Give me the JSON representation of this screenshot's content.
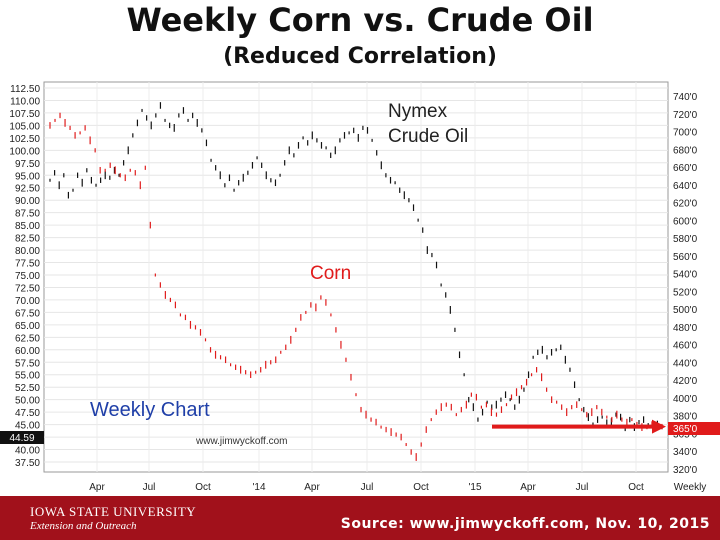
{
  "title": "Weekly Corn vs. Crude Oil",
  "subtitle": "(Reduced Correlation)",
  "footer": {
    "university_line1": "IOWA STATE UNIVERSITY",
    "university_line2": "Extension and Outreach",
    "source": "Source: www.jimwyckoff.com, Nov. 10, 2015"
  },
  "chart_data": {
    "type": "line",
    "x_ticks": [
      "Apr",
      "Jul",
      "Oct",
      "'14",
      "Apr",
      "Jul",
      "Oct",
      "'15",
      "Apr",
      "Jul",
      "Oct",
      "Weekly"
    ],
    "left_axis": {
      "ticks": [
        "112.50",
        "110.00",
        "107.50",
        "105.00",
        "102.50",
        "100.00",
        "97.50",
        "95.00",
        "92.50",
        "90.00",
        "87.50",
        "85.00",
        "82.50",
        "80.00",
        "77.50",
        "75.00",
        "72.50",
        "70.00",
        "67.50",
        "65.00",
        "62.50",
        "60.00",
        "57.50",
        "55.00",
        "52.50",
        "50.00",
        "47.50",
        "45.00",
        "42.50",
        "40.00",
        "37.50"
      ],
      "ylim": [
        37.5,
        112.5
      ],
      "current_label": "44.59"
    },
    "right_axis": {
      "ticks": [
        "740'0",
        "720'0",
        "700'0",
        "680'0",
        "660'0",
        "640'0",
        "620'0",
        "600'0",
        "580'0",
        "560'0",
        "540'0",
        "520'0",
        "500'0",
        "480'0",
        "460'0",
        "440'0",
        "420'0",
        "400'0",
        "380'0",
        "365'0",
        "340'0",
        "320'0"
      ],
      "current_label": "365'0"
    },
    "annotations": {
      "crude_label_line1": "Nymex",
      "crude_label_line2": "Crude Oil",
      "corn_label": "Corn",
      "chart_label": "Weekly Chart",
      "website": "www.jimwyckoff.com"
    },
    "series": [
      {
        "color": "#111111",
        "axis": "left",
        "values": [
          94,
          95.5,
          93,
          95,
          91,
          92,
          95,
          93.5,
          96,
          94,
          93,
          94,
          95,
          94.5,
          96,
          95,
          97.5,
          100,
          103,
          105.5,
          108,
          106.5,
          105,
          107,
          109,
          106,
          105,
          104.5,
          107,
          108,
          106,
          107,
          105.5,
          104,
          101.5,
          98,
          96.5,
          95,
          93,
          94.5,
          92,
          93.5,
          94.5,
          95.5,
          97,
          98.5,
          97,
          95,
          94,
          93.5,
          95,
          97.5,
          100,
          99,
          101,
          102.5,
          101.5,
          103,
          102,
          101,
          100.5,
          99,
          100,
          102,
          103,
          103.5,
          104,
          102.5,
          104.5,
          104,
          102,
          99.5,
          97,
          95,
          94,
          93.5,
          92,
          91,
          90,
          88.5,
          86,
          84,
          80,
          79,
          77,
          73,
          71,
          68,
          64,
          59,
          55,
          50,
          48.5,
          46,
          47.5,
          49.5,
          48.5,
          49,
          50,
          51,
          50,
          48.5,
          50,
          52,
          55,
          58.5,
          59.5,
          60,
          58.5,
          59.5,
          60,
          60.5,
          58,
          56,
          53,
          50,
          48,
          46.5,
          45,
          46,
          46.5,
          45.5,
          45.5,
          47,
          46.5,
          44,
          46,
          44.5,
          45.5,
          46,
          45,
          44,
          45,
          44.5
        ]
      },
      {
        "color": "#e01b1b",
        "axis": "left",
        "values": [
          105,
          106,
          107,
          105.5,
          104.5,
          103,
          103.5,
          104.5,
          102,
          100,
          96,
          96,
          97,
          96,
          95,
          94.5,
          96,
          95.5,
          93,
          96.5,
          85,
          75,
          73,
          71,
          70,
          69,
          67,
          66.5,
          65,
          64.5,
          63.5,
          62,
          60,
          59,
          58.5,
          58,
          57,
          56.5,
          56,
          55.5,
          55,
          55.5,
          56,
          57,
          57.5,
          58,
          59.5,
          60.5,
          62,
          64,
          66.5,
          67.5,
          69,
          68.5,
          70.5,
          69.5,
          67,
          64,
          61,
          58,
          54.5,
          51,
          48,
          47,
          46,
          45.5,
          44.5,
          44,
          43.5,
          43,
          42.5,
          41,
          39.5,
          38.5,
          41,
          44,
          46,
          47.5,
          48.5,
          49,
          48.5,
          47,
          48,
          49,
          51,
          50.5,
          48.5,
          49,
          47.5,
          47,
          48,
          49,
          50.5,
          51.5,
          52.5,
          53.5,
          55,
          56,
          54.5,
          52,
          50,
          49.5,
          48.5,
          47.5,
          48.5,
          49,
          48,
          47,
          47.5,
          48.5,
          47.5,
          46.5,
          46,
          47,
          46,
          45.5,
          46,
          45,
          44.5,
          44.5,
          45,
          44.8,
          44.6
        ]
      }
    ],
    "arrow": {
      "color": "#e01b1b",
      "y_value": 44.59
    }
  }
}
